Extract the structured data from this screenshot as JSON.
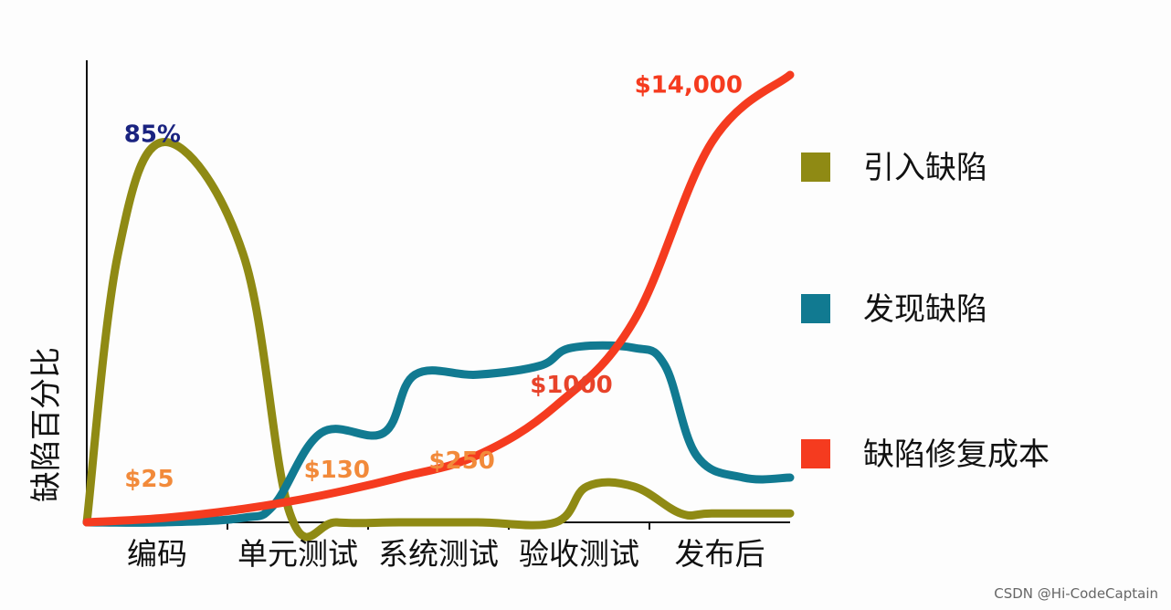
{
  "chart_data": {
    "type": "line",
    "ylabel": "缺陷百分比",
    "categories": [
      "编码",
      "单元测试",
      "系统测试",
      "验收测试",
      "发布后"
    ],
    "series": [
      {
        "name": "引入缺陷",
        "color": "#8f8a14",
        "x": [
          0,
          0.2,
          0.5,
          1.0,
          1.3,
          1.6,
          2.0,
          2.5,
          3.0,
          3.2,
          3.5,
          3.8,
          4.0,
          4.5
        ],
        "values": [
          0,
          60,
          85,
          60,
          2,
          0,
          0,
          0,
          0,
          8,
          8,
          2,
          2,
          2
        ]
      },
      {
        "name": "发现缺陷",
        "color": "#117a91",
        "x": [
          0,
          0.5,
          1.0,
          1.2,
          1.5,
          1.9,
          2.1,
          2.5,
          2.9,
          3.1,
          3.5,
          3.7,
          3.9,
          4.2,
          4.5
        ],
        "values": [
          0,
          0,
          1,
          4,
          20,
          20,
          33,
          33,
          35,
          39,
          39,
          35,
          15,
          10,
          10
        ]
      },
      {
        "name": "缺陷修复成本",
        "color": "#f53b1f",
        "x": [
          0,
          0.5,
          1.0,
          1.5,
          2.0,
          2.5,
          3.0,
          3.5,
          4.0,
          4.5
        ],
        "values": [
          0,
          1,
          3,
          6,
          10,
          15,
          26,
          45,
          85,
          100
        ]
      }
    ],
    "ylim": [
      0,
      100
    ],
    "xlim": [
      0,
      4.5
    ],
    "annotations": [
      {
        "text": "85%",
        "x": 0.42,
        "y": 85,
        "color": "#1a2380"
      },
      {
        "text": "$25",
        "x": 0.4,
        "y": 8,
        "color": "#f28a3a"
      },
      {
        "text": "$130",
        "x": 1.6,
        "y": 10,
        "color": "#f28a3a"
      },
      {
        "text": "$250",
        "x": 2.4,
        "y": 12,
        "color": "#f28a3a"
      },
      {
        "text": "$1000",
        "x": 3.1,
        "y": 29,
        "color": "#e8432a"
      },
      {
        "text": "$14,000",
        "x": 3.85,
        "y": 96,
        "color": "#f53b1f"
      }
    ],
    "legend": "right",
    "grid": false
  },
  "watermark": "CSDN @Hi-CodeCaptain"
}
